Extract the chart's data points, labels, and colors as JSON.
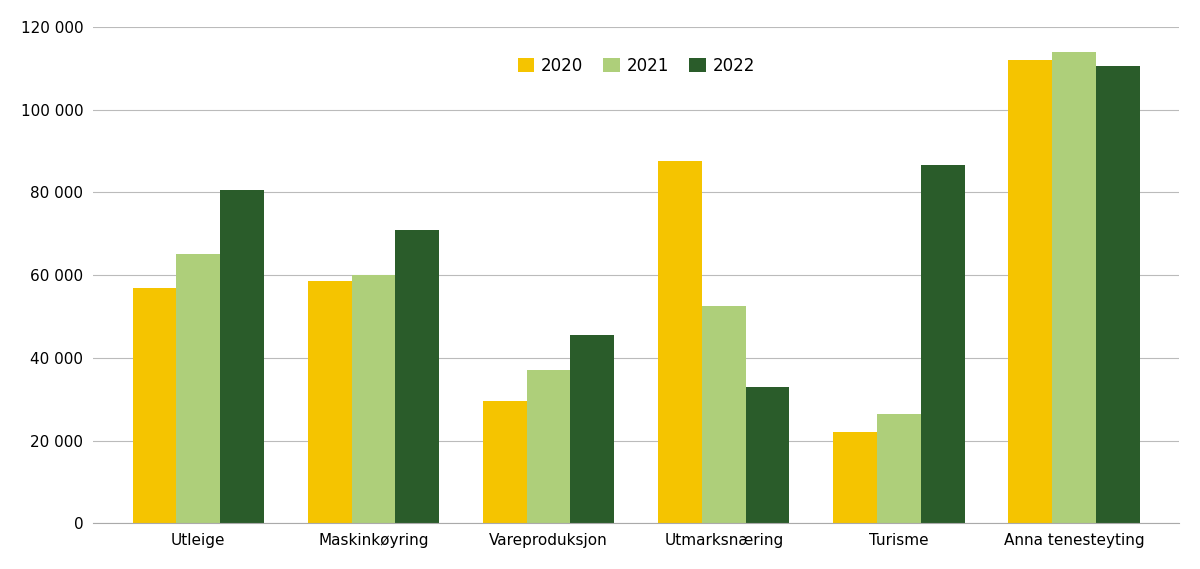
{
  "categories": [
    "Utleige",
    "Maskinkøyring",
    "Vareproduksjon",
    "Utmarksnæring",
    "Turisme",
    "Anna tenesteyting"
  ],
  "series": {
    "2020": [
      57000,
      58500,
      29500,
      87500,
      22000,
      112000
    ],
    "2021": [
      65000,
      60000,
      37000,
      52500,
      26500,
      114000
    ],
    "2022": [
      80500,
      71000,
      45500,
      33000,
      86500,
      110500
    ]
  },
  "colors": {
    "2020": "#F5C400",
    "2021": "#AECF7A",
    "2022": "#2A5C2A"
  },
  "legend_labels": [
    "2020",
    "2021",
    "2022"
  ],
  "ylim": [
    0,
    120000
  ],
  "yticks": [
    0,
    20000,
    40000,
    60000,
    80000,
    100000,
    120000
  ],
  "ytick_labels": [
    "0",
    "20 000",
    "40 000",
    "60 000",
    "80 000",
    "100 000",
    "120 000"
  ],
  "bar_width": 0.25,
  "background_color": "#FFFFFF",
  "grid_color": "#BBBBBB",
  "legend_ncol": 3,
  "figsize": [
    12.0,
    5.69
  ],
  "dpi": 100
}
